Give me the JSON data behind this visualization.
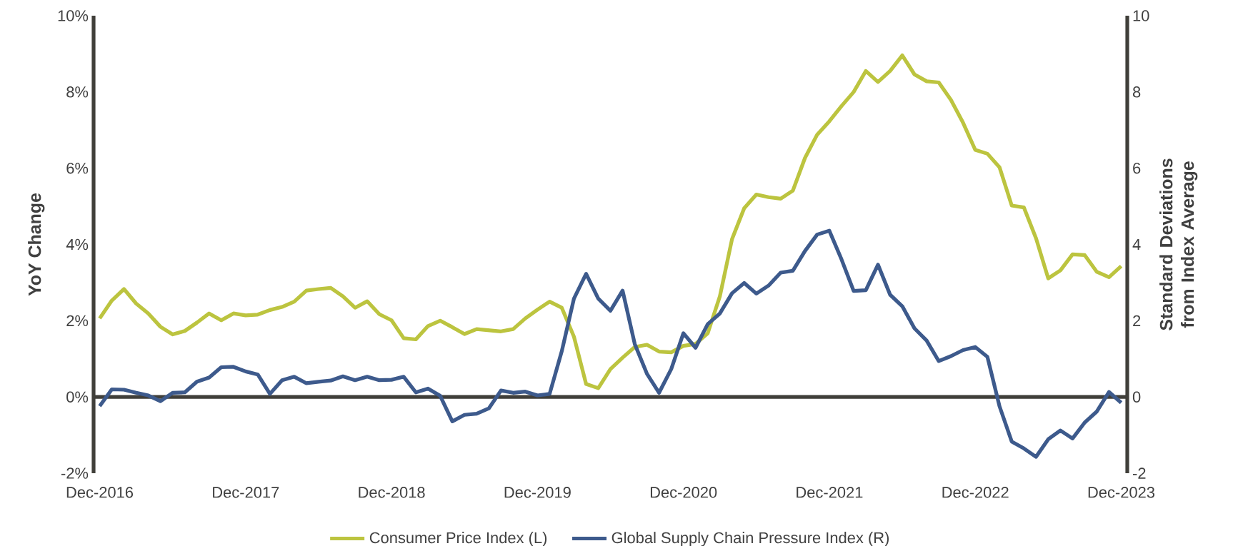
{
  "chart_data": {
    "type": "line",
    "categories": [
      "Dec-2016",
      null,
      null,
      null,
      null,
      null,
      null,
      null,
      null,
      null,
      null,
      null,
      "Dec-2017",
      null,
      null,
      null,
      null,
      null,
      null,
      null,
      null,
      null,
      null,
      null,
      "Dec-2018",
      null,
      null,
      null,
      null,
      null,
      null,
      null,
      null,
      null,
      null,
      null,
      "Dec-2019",
      null,
      null,
      null,
      null,
      null,
      null,
      null,
      null,
      null,
      null,
      null,
      "Dec-2020",
      null,
      null,
      null,
      null,
      null,
      null,
      null,
      null,
      null,
      null,
      null,
      "Dec-2021",
      null,
      null,
      null,
      null,
      null,
      null,
      null,
      null,
      null,
      null,
      null,
      "Dec-2022",
      null,
      null,
      null,
      null,
      null,
      null,
      null,
      null,
      null,
      null,
      null,
      "Dec-2023"
    ],
    "series": [
      {
        "name": "Consumer Price Index (L)",
        "color": "#bcc43f",
        "values": [
          2.06,
          2.53,
          2.83,
          2.45,
          2.19,
          1.84,
          1.64,
          1.73,
          1.95,
          2.19,
          2.01,
          2.19,
          2.14,
          2.16,
          2.28,
          2.36,
          2.5,
          2.79,
          2.83,
          2.86,
          2.64,
          2.34,
          2.51,
          2.17,
          2.01,
          1.54,
          1.51,
          1.86,
          2.0,
          1.83,
          1.65,
          1.78,
          1.75,
          1.72,
          1.78,
          2.06,
          2.29,
          2.5,
          2.34,
          1.58,
          0.34,
          0.23,
          0.73,
          1.03,
          1.31,
          1.37,
          1.19,
          1.17,
          1.34,
          1.39,
          1.67,
          2.64,
          4.14,
          4.95,
          5.31,
          5.24,
          5.2,
          5.41,
          6.27,
          6.88,
          7.23,
          7.63,
          8.0,
          8.55,
          8.26,
          8.55,
          8.96,
          8.46,
          8.28,
          8.25,
          7.79,
          7.19,
          6.48,
          6.38,
          6.02,
          5.02,
          4.97,
          4.16,
          3.11,
          3.32,
          3.74,
          3.72,
          3.28,
          3.14,
          3.43
        ]
      },
      {
        "name": "Global Supply Chain Pressure Index (R)",
        "color": "#3d5a8c",
        "axis": "y2",
        "values": [
          -0.24,
          0.2,
          0.19,
          0.11,
          0.04,
          -0.11,
          0.11,
          0.12,
          0.4,
          0.51,
          0.78,
          0.79,
          0.67,
          0.59,
          0.08,
          0.44,
          0.53,
          0.36,
          0.4,
          0.43,
          0.54,
          0.44,
          0.53,
          0.44,
          0.45,
          0.53,
          0.12,
          0.22,
          0.03,
          -0.64,
          -0.47,
          -0.44,
          -0.3,
          0.17,
          0.11,
          0.14,
          0.04,
          0.08,
          1.2,
          2.58,
          3.23,
          2.58,
          2.26,
          2.79,
          1.39,
          0.61,
          0.11,
          0.73,
          1.67,
          1.29,
          1.91,
          2.19,
          2.72,
          2.99,
          2.71,
          2.92,
          3.26,
          3.31,
          3.83,
          4.26,
          4.36,
          3.61,
          2.78,
          2.8,
          3.47,
          2.68,
          2.38,
          1.8,
          1.48,
          0.94,
          1.07,
          1.23,
          1.31,
          1.05,
          -0.25,
          -1.17,
          -1.35,
          -1.57,
          -1.11,
          -0.88,
          -1.09,
          -0.67,
          -0.38,
          0.13,
          -0.15
        ]
      }
    ],
    "ylabel": "YoY Change",
    "y2label": "Standard Deviations from Index Average",
    "ylim": [
      -2,
      10
    ],
    "yticks": [
      {
        "value": -2,
        "label": "-2%"
      },
      {
        "value": 0,
        "label": "0%"
      },
      {
        "value": 2,
        "label": "2%"
      },
      {
        "value": 4,
        "label": "4%"
      },
      {
        "value": 6,
        "label": "6%"
      },
      {
        "value": 8,
        "label": "8%"
      },
      {
        "value": 10,
        "label": "10%"
      }
    ],
    "y2lim": [
      -2,
      10
    ],
    "y2ticks": [
      -2,
      0,
      2,
      4,
      6,
      8,
      10
    ],
    "ref_lines": [
      {
        "axis": "y",
        "value": 0,
        "color": "#403f3a"
      }
    ],
    "legend": "bottom"
  }
}
